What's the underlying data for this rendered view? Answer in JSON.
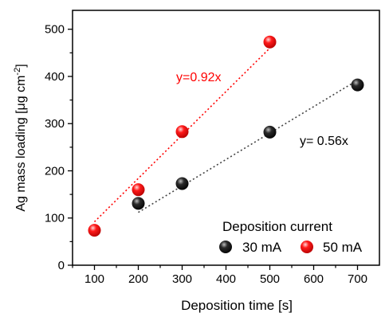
{
  "chart_data": {
    "type": "scatter",
    "xlabel": "Deposition time [s]",
    "ylabel": "Ag mass loading [μg cm",
    "ylabel_sup": "-2",
    "ylabel_end": "]",
    "xlim": [
      50,
      750
    ],
    "ylim": [
      0,
      540
    ],
    "xticks": [
      100,
      200,
      300,
      400,
      500,
      600,
      700
    ],
    "yticks": [
      0,
      100,
      200,
      300,
      400,
      500
    ],
    "grid": false,
    "legend": {
      "title": "Deposition current",
      "placement": "bottom-right",
      "entries": [
        "30 mA",
        "50 mA"
      ]
    },
    "series": [
      {
        "name": "30 mA",
        "color": "#000000",
        "points": [
          {
            "x": 200,
            "y": 131
          },
          {
            "x": 300,
            "y": 173
          },
          {
            "x": 500,
            "y": 282
          },
          {
            "x": 700,
            "y": 382
          }
        ],
        "fit": {
          "label": "y= 0.56x",
          "slope": 0.56,
          "x_from": 200,
          "x_to": 700
        }
      },
      {
        "name": "50 mA",
        "color": "#ff0000",
        "points": [
          {
            "x": 100,
            "y": 74
          },
          {
            "x": 200,
            "y": 160
          },
          {
            "x": 300,
            "y": 283
          },
          {
            "x": 500,
            "y": 473
          }
        ],
        "fit": {
          "label": "y=0.92x",
          "slope": 0.92,
          "x_from": 100,
          "x_to": 500
        }
      }
    ]
  }
}
